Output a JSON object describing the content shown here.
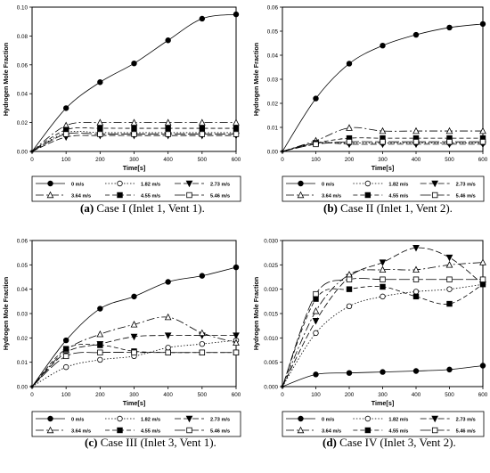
{
  "legend_labels": [
    "0 m/s",
    "1.82 m/s",
    "2.73 m/s",
    "3.64 m/s",
    "4.55 m/s",
    "5.46 m/s"
  ],
  "chart_data": [
    {
      "type": "line",
      "caption": {
        "tag": "a",
        "text": " Case I (Inlet 1, Vent 1)."
      },
      "xlabel": "Time[s]",
      "ylabel": "Hydrogen Mole Fraction",
      "xlim": [
        0,
        600
      ],
      "ylim": [
        0,
        0.1
      ],
      "xticks": [
        0,
        100,
        200,
        300,
        400,
        500,
        600
      ],
      "yticks": [
        0.0,
        0.02,
        0.04,
        0.06,
        0.08,
        0.1
      ],
      "ytick_labels": [
        "0.00",
        "0.02",
        "0.04",
        "0.06",
        "0.08",
        "0.10"
      ],
      "x": [
        0,
        100,
        200,
        300,
        400,
        500,
        600
      ],
      "series": [
        {
          "name": "0 m/s",
          "values": [
            0,
            0.03,
            0.048,
            0.061,
            0.077,
            0.092,
            0.095
          ]
        },
        {
          "name": "1.82 m/s",
          "values": [
            0,
            0.013,
            0.013,
            0.013,
            0.013,
            0.013,
            0.013
          ]
        },
        {
          "name": "2.73 m/s",
          "values": [
            0,
            0.01,
            0.011,
            0.011,
            0.011,
            0.011,
            0.011
          ]
        },
        {
          "name": "3.64 m/s",
          "values": [
            0,
            0.018,
            0.02,
            0.02,
            0.02,
            0.02,
            0.02
          ]
        },
        {
          "name": "4.55 m/s",
          "values": [
            0,
            0.015,
            0.016,
            0.016,
            0.016,
            0.016,
            0.016
          ]
        },
        {
          "name": "5.46 m/s",
          "values": [
            0,
            0.012,
            0.012,
            0.012,
            0.012,
            0.012,
            0.012
          ]
        }
      ]
    },
    {
      "type": "line",
      "caption": {
        "tag": "b",
        "text": " Case II (Inlet 1, Vent 2)."
      },
      "xlabel": "Time[s]",
      "ylabel": "Hydrogen Mole Fraction",
      "xlim": [
        0,
        600
      ],
      "ylim": [
        0,
        0.06
      ],
      "xticks": [
        0,
        100,
        200,
        300,
        400,
        500,
        600
      ],
      "yticks": [
        0.0,
        0.01,
        0.02,
        0.03,
        0.04,
        0.05,
        0.06
      ],
      "ytick_labels": [
        "0.00",
        "0.01",
        "0.02",
        "0.03",
        "0.04",
        "0.05",
        "0.06"
      ],
      "x": [
        0,
        100,
        200,
        300,
        400,
        500,
        600
      ],
      "series": [
        {
          "name": "0 m/s",
          "values": [
            0,
            0.022,
            0.0365,
            0.044,
            0.0485,
            0.0515,
            0.053
          ]
        },
        {
          "name": "1.82 m/s",
          "values": [
            0,
            0.0035,
            0.0035,
            0.0035,
            0.0035,
            0.0035,
            0.0035
          ]
        },
        {
          "name": "2.73 m/s",
          "values": [
            0,
            0.0035,
            0.003,
            0.003,
            0.003,
            0.003,
            0.003
          ]
        },
        {
          "name": "3.64 m/s",
          "values": [
            0,
            0.0045,
            0.0098,
            0.0085,
            0.0085,
            0.0085,
            0.0085
          ]
        },
        {
          "name": "4.55 m/s",
          "values": [
            0,
            0.0035,
            0.0055,
            0.0055,
            0.0055,
            0.0055,
            0.0055
          ]
        },
        {
          "name": "5.46 m/s",
          "values": [
            0,
            0.003,
            0.004,
            0.004,
            0.004,
            0.004,
            0.004
          ]
        }
      ]
    },
    {
      "type": "line",
      "caption": {
        "tag": "c",
        "text": " Case III (Inlet 3, Vent 1)."
      },
      "xlabel": "Time[s]",
      "ylabel": "Hydrogen Mole Fraction",
      "xlim": [
        0,
        600
      ],
      "ylim": [
        0,
        0.06
      ],
      "xticks": [
        0,
        100,
        200,
        300,
        400,
        500,
        600
      ],
      "yticks": [
        0.0,
        0.01,
        0.02,
        0.03,
        0.04,
        0.05,
        0.06
      ],
      "ytick_labels": [
        "0.00",
        "0.01",
        "0.02",
        "0.03",
        "0.04",
        "0.05",
        "0.06"
      ],
      "x": [
        0,
        100,
        200,
        300,
        400,
        500,
        600
      ],
      "series": [
        {
          "name": "0 m/s",
          "values": [
            0,
            0.019,
            0.032,
            0.037,
            0.043,
            0.0455,
            0.049
          ]
        },
        {
          "name": "1.82 m/s",
          "values": [
            0,
            0.008,
            0.011,
            0.0125,
            0.016,
            0.0175,
            0.019
          ]
        },
        {
          "name": "2.73 m/s",
          "values": [
            0,
            0.014,
            0.0175,
            0.0205,
            0.021,
            0.021,
            0.021
          ]
        },
        {
          "name": "3.64 m/s",
          "values": [
            0,
            0.015,
            0.0215,
            0.0255,
            0.0285,
            0.022,
            0.018
          ]
        },
        {
          "name": "4.55 m/s",
          "values": [
            0,
            0.0155,
            0.017,
            0.0145,
            0.014,
            0.014,
            0.014
          ]
        },
        {
          "name": "5.46 m/s",
          "values": [
            0,
            0.0125,
            0.014,
            0.014,
            0.014,
            0.014,
            0.014
          ]
        }
      ]
    },
    {
      "type": "line",
      "caption": {
        "tag": "d",
        "text": " Case IV (Inlet 3, Vent 2)."
      },
      "xlabel": "Time[s]",
      "ylabel": "Hydrogen Mole Fraction",
      "xlim": [
        0,
        600
      ],
      "ylim": [
        0,
        0.03
      ],
      "xticks": [
        0,
        100,
        200,
        300,
        400,
        500,
        600
      ],
      "yticks": [
        0.0,
        0.005,
        0.01,
        0.015,
        0.02,
        0.025,
        0.03
      ],
      "ytick_labels": [
        "0.000",
        "0.005",
        "0.010",
        "0.015",
        "0.020",
        "0.025",
        "0.030"
      ],
      "x": [
        0,
        100,
        200,
        300,
        400,
        500,
        600
      ],
      "series": [
        {
          "name": "0 m/s",
          "values": [
            0,
            0.0025,
            0.0028,
            0.003,
            0.0032,
            0.0035,
            0.0043
          ]
        },
        {
          "name": "1.82 m/s",
          "values": [
            0,
            0.011,
            0.0165,
            0.0185,
            0.0195,
            0.02,
            0.021
          ]
        },
        {
          "name": "2.73 m/s",
          "values": [
            0,
            0.0135,
            0.0225,
            0.0255,
            0.0285,
            0.0265,
            0.021
          ]
        },
        {
          "name": "3.64 m/s",
          "values": [
            0,
            0.0155,
            0.023,
            0.024,
            0.024,
            0.025,
            0.0255
          ]
        },
        {
          "name": "4.55 m/s",
          "values": [
            0,
            0.018,
            0.02,
            0.0205,
            0.0185,
            0.017,
            0.021
          ]
        },
        {
          "name": "5.46 m/s",
          "values": [
            0,
            0.019,
            0.022,
            0.022,
            0.022,
            0.022,
            0.022
          ]
        }
      ]
    }
  ]
}
